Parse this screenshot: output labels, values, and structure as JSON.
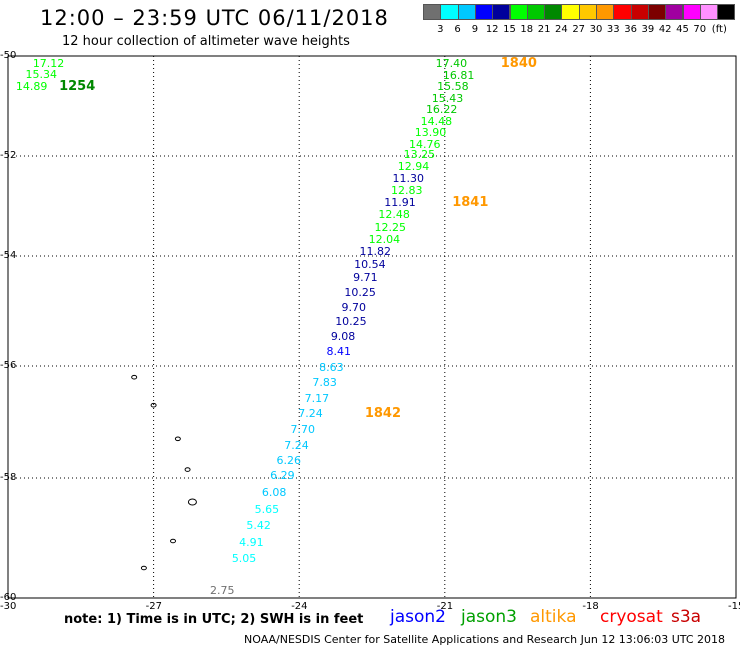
{
  "header": {
    "title": "12:00 – 23:59 UTC 06/11/2018",
    "subtitle": "12 hour collection of altimeter wave heights"
  },
  "legend": {
    "colors": [
      "#707070",
      "#00ffff",
      "#00c8ff",
      "#0000ff",
      "#00009c",
      "#00ff00",
      "#00c800",
      "#008800",
      "#ffff00",
      "#ffc800",
      "#ff9800",
      "#ff0000",
      "#c80000",
      "#7c0000",
      "#a000a0",
      "#ff00ff",
      "#ff90ff",
      "#000000"
    ],
    "ticks": [
      "3",
      "6",
      "9",
      "12",
      "15",
      "18",
      "21",
      "24",
      "27",
      "30",
      "33",
      "36",
      "39",
      "42",
      "45",
      "70"
    ],
    "unit": "(ft)"
  },
  "chart_data": {
    "type": "map",
    "x_ticks": [
      "-30",
      "-27",
      "-24",
      "-21",
      "-18",
      "-15"
    ],
    "y_ticks": [
      "-50",
      "-52",
      "-54",
      "-56",
      "-58",
      "-60"
    ],
    "xlim": [
      -30,
      -15
    ],
    "ylim": [
      -60,
      -50
    ],
    "grid": true,
    "observations": [
      {
        "text": "17.40",
        "lon": -20.9,
        "lat": -50.13,
        "c": "#00c800"
      },
      {
        "text": "16.81",
        "lon": -20.75,
        "lat": -50.37,
        "c": "#00c800"
      },
      {
        "text": "15.58",
        "lon": -20.87,
        "lat": -50.6,
        "c": "#00c800"
      },
      {
        "text": "15.43",
        "lon": -20.98,
        "lat": -50.83,
        "c": "#00c800"
      },
      {
        "text": "16.22",
        "lon": -21.1,
        "lat": -51.06,
        "c": "#00c800"
      },
      {
        "text": "14.48",
        "lon": -21.21,
        "lat": -51.29,
        "c": "#00ff00"
      },
      {
        "text": "13.90",
        "lon": -21.33,
        "lat": -51.52,
        "c": "#00ff00"
      },
      {
        "text": "14.76",
        "lon": -21.45,
        "lat": -51.75,
        "c": "#00ff00"
      },
      {
        "text": "13.25",
        "lon": -21.56,
        "lat": -51.96,
        "c": "#00ff00"
      },
      {
        "text": "12.94",
        "lon": -21.68,
        "lat": -52.19,
        "c": "#00ff00"
      },
      {
        "text": "11.30",
        "lon": -21.79,
        "lat": -52.44,
        "c": "#00009c"
      },
      {
        "text": "12.83",
        "lon": -21.82,
        "lat": -52.68,
        "c": "#00ff00"
      },
      {
        "text": "11.91",
        "lon": -21.96,
        "lat": -52.92,
        "c": "#00009c"
      },
      {
        "text": "12.48",
        "lon": -22.08,
        "lat": -53.15,
        "c": "#00ff00"
      },
      {
        "text": "12.25",
        "lon": -22.16,
        "lat": -53.41,
        "c": "#00ff00"
      },
      {
        "text": "12.04",
        "lon": -22.28,
        "lat": -53.65,
        "c": "#00ff00"
      },
      {
        "text": "11.82",
        "lon": -22.47,
        "lat": -53.9,
        "c": "#00009c"
      },
      {
        "text": "10.54",
        "lon": -22.58,
        "lat": -54.14,
        "c": "#00009c"
      },
      {
        "text": "9.71",
        "lon": -22.6,
        "lat": -54.39,
        "c": "#00009c"
      },
      {
        "text": "10.25",
        "lon": -22.78,
        "lat": -54.66,
        "c": "#00009c"
      },
      {
        "text": "9.70",
        "lon": -22.84,
        "lat": -54.92,
        "c": "#00009c"
      },
      {
        "text": "10.25",
        "lon": -22.97,
        "lat": -55.18,
        "c": "#00009c"
      },
      {
        "text": "9.08",
        "lon": -23.06,
        "lat": -55.45,
        "c": "#00009c"
      },
      {
        "text": "8.41",
        "lon": -23.15,
        "lat": -55.73,
        "c": "#0000ff"
      },
      {
        "text": "8.63",
        "lon": -23.3,
        "lat": -56.01,
        "c": "#00c8ff"
      },
      {
        "text": "7.83",
        "lon": -23.44,
        "lat": -56.29,
        "c": "#00c8ff"
      },
      {
        "text": "7.17",
        "lon": -23.6,
        "lat": -56.57,
        "c": "#00c8ff"
      },
      {
        "text": "7.24",
        "lon": -23.73,
        "lat": -56.84,
        "c": "#00c8ff"
      },
      {
        "text": "7.70",
        "lon": -23.89,
        "lat": -57.12,
        "c": "#00c8ff"
      },
      {
        "text": "7.24",
        "lon": -24.02,
        "lat": -57.41,
        "c": "#00c8ff"
      },
      {
        "text": "6.26",
        "lon": -24.18,
        "lat": -57.67,
        "c": "#00c8ff"
      },
      {
        "text": "6.29",
        "lon": -24.31,
        "lat": -57.95,
        "c": "#00c8ff"
      },
      {
        "text": "6.08",
        "lon": -24.48,
        "lat": -58.23,
        "c": "#00c8ff"
      },
      {
        "text": "5.65",
        "lon": -24.63,
        "lat": -58.51,
        "c": "#00ffff"
      },
      {
        "text": "5.42",
        "lon": -24.8,
        "lat": -58.79,
        "c": "#00ffff"
      },
      {
        "text": "4.91",
        "lon": -24.95,
        "lat": -59.07,
        "c": "#00ffff"
      },
      {
        "text": "5.05",
        "lon": -25.1,
        "lat": -59.34,
        "c": "#00ffff"
      },
      {
        "text": "2.75",
        "lon": -25.55,
        "lat": -59.86,
        "c": "#707070"
      },
      {
        "text": "17.12",
        "lon": -29.2,
        "lat": -50.13,
        "c": "#00ff00"
      },
      {
        "text": "15.34",
        "lon": -29.35,
        "lat": -50.36,
        "c": "#00ff00"
      },
      {
        "text": "14.89",
        "lon": -29.55,
        "lat": -50.59,
        "c": "#00ff00"
      }
    ],
    "orbits": [
      {
        "text": "1840",
        "lon": -19.6,
        "lat": -50.13,
        "c": "#ff9800"
      },
      {
        "text": "1841",
        "lon": -20.6,
        "lat": -52.92,
        "c": "#ff9800"
      },
      {
        "text": "1842",
        "lon": -22.4,
        "lat": -56.84,
        "c": "#ff9800"
      },
      {
        "text": "1254",
        "lon": -28.7,
        "lat": -50.59,
        "c": "#008800"
      }
    ]
  },
  "footer": {
    "note": "note: 1) Time is in UTC; 2) SWH is in feet",
    "satellites": [
      {
        "name": "jason2",
        "color": "#0000ff"
      },
      {
        "name": "jason3",
        "color": "#00a000"
      },
      {
        "name": "altika",
        "color": "#ff9800"
      },
      {
        "name": "cryosat",
        "color": "#ff0000"
      },
      {
        "name": "s3a",
        "color": "#c80000"
      }
    ],
    "credit": "NOAA/NESDIS Center for Satellite Applications and Research   Jun 12 13:06:03 UTC 2018"
  }
}
